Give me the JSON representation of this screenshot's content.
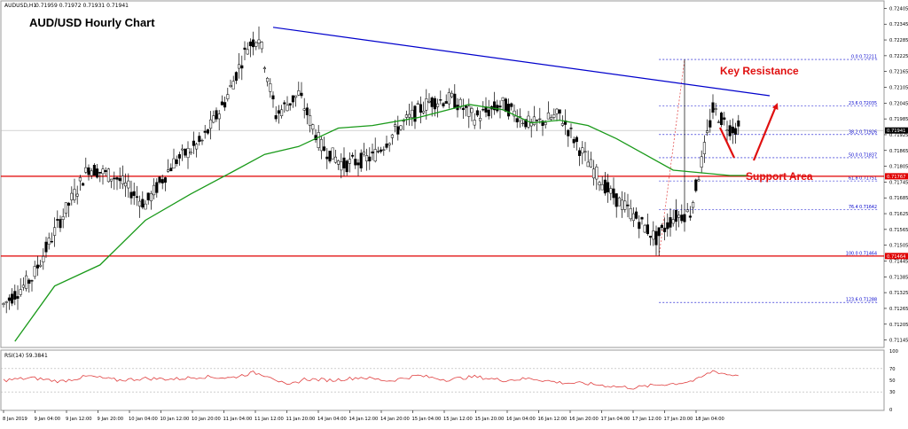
{
  "header": {
    "symbol": "AUDUSD,H1",
    "ohlc": "0.71959 0.71972 0.71931 0.71941"
  },
  "chart_title": "AUD/USD Hourly Chart",
  "annotations": {
    "key_resistance": "Key Resistance",
    "support_area": "Support Area"
  },
  "rsi_label": "RSI(14) 59.3841",
  "colors": {
    "bull": "#ffffff",
    "bear": "#000000",
    "trendline": "#0000cc",
    "support": "#e00000",
    "ma": "#1a9a1a",
    "fib": "#0000cc",
    "rsi": "#e04040",
    "arrow": "#e01010"
  },
  "chart_data": {
    "type": "candlestick",
    "y_ticks": [
      "0.72405",
      "0.72345",
      "0.72285",
      "0.72225",
      "0.72165",
      "0.72105",
      "0.72045",
      "0.71985",
      "0.71925",
      "0.71865",
      "0.71805",
      "0.71745",
      "0.71685",
      "0.71625",
      "0.71565",
      "0.71505",
      "0.71445",
      "0.71385",
      "0.71325",
      "0.71265",
      "0.71205",
      "0.71145"
    ],
    "ylim": [
      0.7112,
      0.7243
    ],
    "x_ticks": [
      "8 Jan 2019",
      "9 Jan 04:00",
      "9 Jan 12:00",
      "9 Jan 20:00",
      "10 Jan 04:00",
      "10 Jan 12:00",
      "10 Jan 20:00",
      "11 Jan 04:00",
      "11 Jan 12:00",
      "11 Jan 20:00",
      "14 Jan 04:00",
      "14 Jan 12:00",
      "14 Jan 20:00",
      "15 Jan 04:00",
      "15 Jan 12:00",
      "15 Jan 20:00",
      "16 Jan 04:00",
      "16 Jan 12:00",
      "16 Jan 20:00",
      "17 Jan 04:00",
      "17 Jan 12:00",
      "17 Jan 20:00",
      "18 Jan 04:00"
    ],
    "anchors": [
      [
        0,
        0.7128
      ],
      [
        10,
        0.7138
      ],
      [
        20,
        0.716
      ],
      [
        30,
        0.718
      ],
      [
        40,
        0.7176
      ],
      [
        50,
        0.7166
      ],
      [
        60,
        0.7182
      ],
      [
        70,
        0.719
      ],
      [
        78,
        0.7205
      ],
      [
        86,
        0.7226
      ],
      [
        90,
        0.723
      ],
      [
        96,
        0.72
      ],
      [
        104,
        0.7208
      ],
      [
        112,
        0.7188
      ],
      [
        120,
        0.7181
      ],
      [
        130,
        0.7184
      ],
      [
        140,
        0.7196
      ],
      [
        150,
        0.7205
      ],
      [
        158,
        0.7206
      ],
      [
        166,
        0.7199
      ],
      [
        176,
        0.7204
      ],
      [
        186,
        0.7196
      ],
      [
        196,
        0.72
      ],
      [
        206,
        0.7182
      ],
      [
        214,
        0.717
      ],
      [
        222,
        0.7162
      ],
      [
        230,
        0.7153
      ],
      [
        236,
        0.7161
      ],
      [
        242,
        0.7163
      ],
      [
        246,
        0.7182
      ],
      [
        250,
        0.7202
      ],
      [
        256,
        0.7195
      ]
    ],
    "moving_average": [
      [
        4,
        0.7114
      ],
      [
        18,
        0.7135
      ],
      [
        34,
        0.7143
      ],
      [
        50,
        0.716
      ],
      [
        66,
        0.717
      ],
      [
        80,
        0.7178
      ],
      [
        92,
        0.7185
      ],
      [
        104,
        0.7188
      ],
      [
        118,
        0.7195
      ],
      [
        130,
        0.7196
      ],
      [
        146,
        0.7199
      ],
      [
        164,
        0.7204
      ],
      [
        176,
        0.7202
      ],
      [
        186,
        0.7197
      ],
      [
        196,
        0.7198
      ],
      [
        206,
        0.7196
      ],
      [
        216,
        0.7191
      ],
      [
        226,
        0.7185
      ],
      [
        236,
        0.7179
      ],
      [
        246,
        0.7178
      ],
      [
        256,
        0.7177
      ],
      [
        262,
        0.7177
      ]
    ],
    "trendline": {
      "from": [
        95,
        0.72333
      ],
      "to": [
        270,
        0.72073
      ]
    },
    "support_levels": [
      {
        "value": 0.71767,
        "label": "0.71767"
      },
      {
        "value": 0.71464,
        "label": "0.71464"
      }
    ],
    "fibonacci": {
      "range": [
        0.71464,
        0.72211
      ],
      "levels": [
        {
          "ratio": 0.0,
          "label": "0.0  0.72211"
        },
        {
          "ratio": 0.236,
          "label": "23.6  0.72035"
        },
        {
          "ratio": 0.382,
          "label": "38.2  0.71926"
        },
        {
          "ratio": 0.5,
          "label": "50.0  0.71837"
        },
        {
          "ratio": 0.618,
          "label": "61.8  0.71751"
        },
        {
          "ratio": 0.764,
          "label": "76.4  0.71642"
        },
        {
          "ratio": 1.0,
          "label": "100.0  0.71464"
        },
        {
          "ratio": 1.236,
          "label": "123.6  0.71288"
        }
      ]
    },
    "current_price": 0.71941,
    "rsi": {
      "ylim": [
        0,
        100
      ],
      "ticks": [
        "100",
        "70",
        "50",
        "30",
        "0"
      ],
      "levels": [
        70,
        30
      ],
      "anchors": [
        [
          0,
          50
        ],
        [
          10,
          54
        ],
        [
          20,
          48
        ],
        [
          30,
          57
        ],
        [
          40,
          50
        ],
        [
          50,
          53
        ],
        [
          60,
          52
        ],
        [
          70,
          56
        ],
        [
          80,
          54
        ],
        [
          88,
          63
        ],
        [
          94,
          57
        ],
        [
          100,
          40
        ],
        [
          106,
          52
        ],
        [
          116,
          50
        ],
        [
          126,
          55
        ],
        [
          136,
          49
        ],
        [
          146,
          58
        ],
        [
          156,
          51
        ],
        [
          166,
          56
        ],
        [
          176,
          50
        ],
        [
          186,
          53
        ],
        [
          196,
          46
        ],
        [
          206,
          44
        ],
        [
          214,
          40
        ],
        [
          222,
          37
        ],
        [
          230,
          42
        ],
        [
          238,
          45
        ],
        [
          244,
          50
        ],
        [
          250,
          66
        ],
        [
          256,
          59
        ]
      ]
    }
  }
}
